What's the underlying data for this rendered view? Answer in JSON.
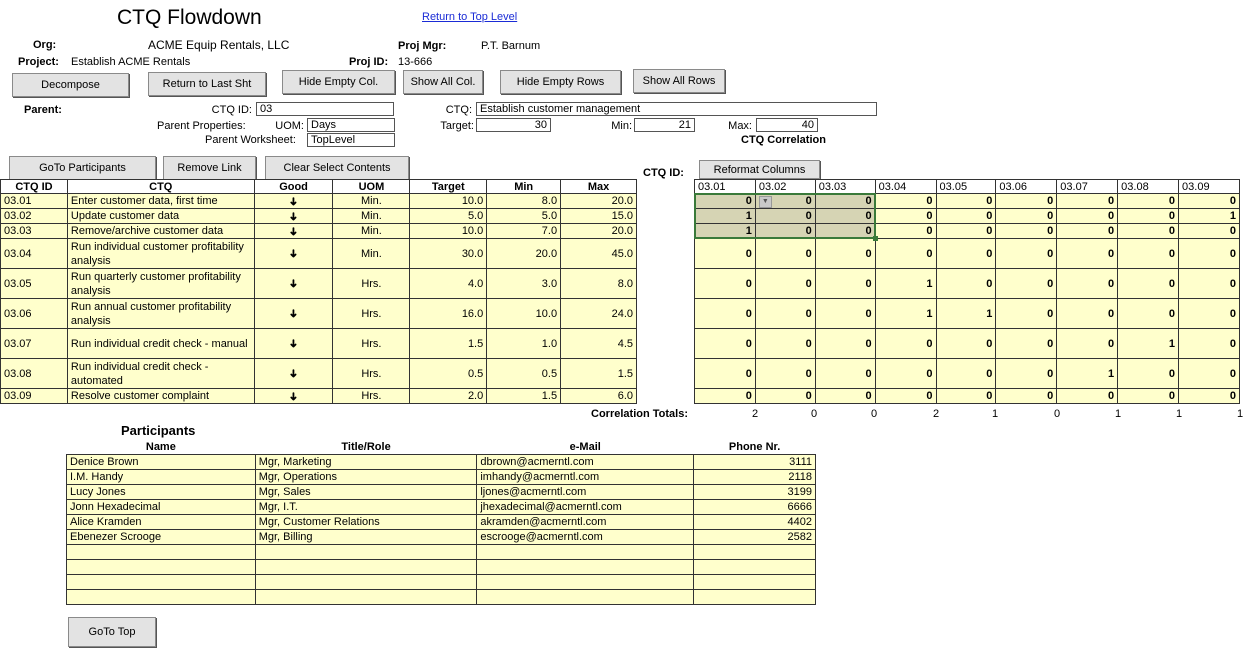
{
  "header": {
    "title": "CTQ Flowdown",
    "return_link": "Return to Top Level",
    "org_label": "Org:",
    "org_value": "ACME Equip Rentals, LLC",
    "proj_mgr_label": "Proj Mgr:",
    "proj_mgr_value": "P.T. Barnum",
    "project_label": "Project:",
    "project_value": "Establish ACME Rentals",
    "proj_id_label": "Proj ID:",
    "proj_id_value": "13-666"
  },
  "toolbar": {
    "decompose": "Decompose",
    "return_last": "Return to Last Sht",
    "hide_empty_col": "Hide Empty Col.",
    "show_all_col": "Show All Col.",
    "hide_empty_rows": "Hide Empty Rows",
    "show_all_rows": "Show All Rows"
  },
  "parent": {
    "label": "Parent:",
    "ctq_id_label": "CTQ ID:",
    "ctq_id_value": "03",
    "props_label": "Parent Properties:",
    "uom_label": "UOM:",
    "uom_value": "Days",
    "worksheet_label": "Parent Worksheet:",
    "worksheet_value": "TopLevel",
    "ctq_label": "CTQ:",
    "ctq_value": "Establish customer management",
    "target_label": "Target:",
    "target_value": "30",
    "min_label": "Min:",
    "min_value": "21",
    "max_label": "Max:",
    "max_value": "40",
    "correlation_title": "CTQ Correlation"
  },
  "actions": {
    "goto_participants": "GoTo Participants",
    "remove_link": "Remove Link",
    "clear_select": "Clear Select Contents",
    "ctq_id_label": "CTQ ID:",
    "reformat_columns": "Reformat Columns",
    "goto_top": "GoTo Top"
  },
  "ctq_table": {
    "headers": [
      "CTQ ID",
      "CTQ",
      "Good",
      "UOM",
      "Target",
      "Min",
      "Max"
    ],
    "good_arrow": "➜",
    "rows": [
      {
        "id": "03.01",
        "ctq": "Enter customer data, first time",
        "uom": "Min.",
        "target": "10.0",
        "min": "8.0",
        "max": "20.0"
      },
      {
        "id": "03.02",
        "ctq": "Update customer data",
        "uom": "Min.",
        "target": "5.0",
        "min": "5.0",
        "max": "15.0"
      },
      {
        "id": "03.03",
        "ctq": "Remove/archive customer data",
        "uom": "Min.",
        "target": "10.0",
        "min": "7.0",
        "max": "20.0"
      },
      {
        "id": "03.04",
        "ctq": "Run individual customer profitability analysis",
        "uom": "Min.",
        "target": "30.0",
        "min": "20.0",
        "max": "45.0"
      },
      {
        "id": "03.05",
        "ctq": "Run quarterly customer profitability analysis",
        "uom": "Hrs.",
        "target": "4.0",
        "min": "3.0",
        "max": "8.0"
      },
      {
        "id": "03.06",
        "ctq": "Run annual customer profitability analysis",
        "uom": "Hrs.",
        "target": "16.0",
        "min": "10.0",
        "max": "24.0"
      },
      {
        "id": "03.07",
        "ctq": "Run individual credit check - manual",
        "uom": "Hrs.",
        "target": "1.5",
        "min": "1.0",
        "max": "4.5"
      },
      {
        "id": "03.08",
        "ctq": "Run individual credit check - automated",
        "uom": "Hrs.",
        "target": "0.5",
        "min": "0.5",
        "max": "1.5"
      },
      {
        "id": "03.09",
        "ctq": "Resolve customer complaint",
        "uom": "Hrs.",
        "target": "2.0",
        "min": "1.5",
        "max": "6.0"
      }
    ]
  },
  "correlation": {
    "columns": [
      "03.01",
      "03.02",
      "03.03",
      "03.04",
      "03.05",
      "03.06",
      "03.07",
      "03.08",
      "03.09"
    ],
    "matrix": [
      [
        "0",
        "0",
        "0",
        "0",
        "0",
        "0",
        "0",
        "0",
        "0"
      ],
      [
        "1",
        "0",
        "0",
        "0",
        "0",
        "0",
        "0",
        "0",
        "1"
      ],
      [
        "1",
        "0",
        "0",
        "0",
        "0",
        "0",
        "0",
        "0",
        "0"
      ],
      [
        "0",
        "0",
        "0",
        "0",
        "0",
        "0",
        "0",
        "0",
        "0"
      ],
      [
        "0",
        "0",
        "0",
        "1",
        "0",
        "0",
        "0",
        "0",
        "0"
      ],
      [
        "0",
        "0",
        "0",
        "1",
        "1",
        "0",
        "0",
        "0",
        "0"
      ],
      [
        "0",
        "0",
        "0",
        "0",
        "0",
        "0",
        "0",
        "1",
        "0"
      ],
      [
        "0",
        "0",
        "0",
        "0",
        "0",
        "0",
        "1",
        "0",
        "0"
      ],
      [
        "0",
        "0",
        "0",
        "0",
        "0",
        "0",
        "0",
        "0",
        "0"
      ]
    ],
    "totals_label": "Correlation Totals:",
    "totals": [
      "2",
      "0",
      "0",
      "2",
      "1",
      "0",
      "1",
      "1",
      "1"
    ]
  },
  "participants": {
    "title": "Participants",
    "headers": [
      "Name",
      "Title/Role",
      "e-Mail",
      "Phone Nr."
    ],
    "rows": [
      {
        "name": "Denice Brown",
        "role": "Mgr, Marketing",
        "email": "dbrown@acmerntl.com",
        "phone": "3111"
      },
      {
        "name": "I.M. Handy",
        "role": "Mgr, Operations",
        "email": "imhandy@acmerntl.com",
        "phone": "2118"
      },
      {
        "name": "Lucy Jones",
        "role": "Mgr, Sales",
        "email": "ljones@acmerntl.com",
        "phone": "3199"
      },
      {
        "name": "Jonn Hexadecimal",
        "role": "Mgr, I.T.",
        "email": "jhexadecimal@acmerntl.com",
        "phone": "6666"
      },
      {
        "name": "Alice Kramden",
        "role": "Mgr, Customer Relations",
        "email": "akramden@acmerntl.com",
        "phone": "4402"
      },
      {
        "name": "Ebenezer Scrooge",
        "role": "Mgr, Billing",
        "email": "escrooge@acmerntl.com",
        "phone": "2582"
      },
      {
        "name": "",
        "role": "",
        "email": "",
        "phone": ""
      },
      {
        "name": "",
        "role": "",
        "email": "",
        "phone": ""
      },
      {
        "name": "",
        "role": "",
        "email": "",
        "phone": ""
      },
      {
        "name": "",
        "role": "",
        "email": "",
        "phone": ""
      }
    ]
  }
}
